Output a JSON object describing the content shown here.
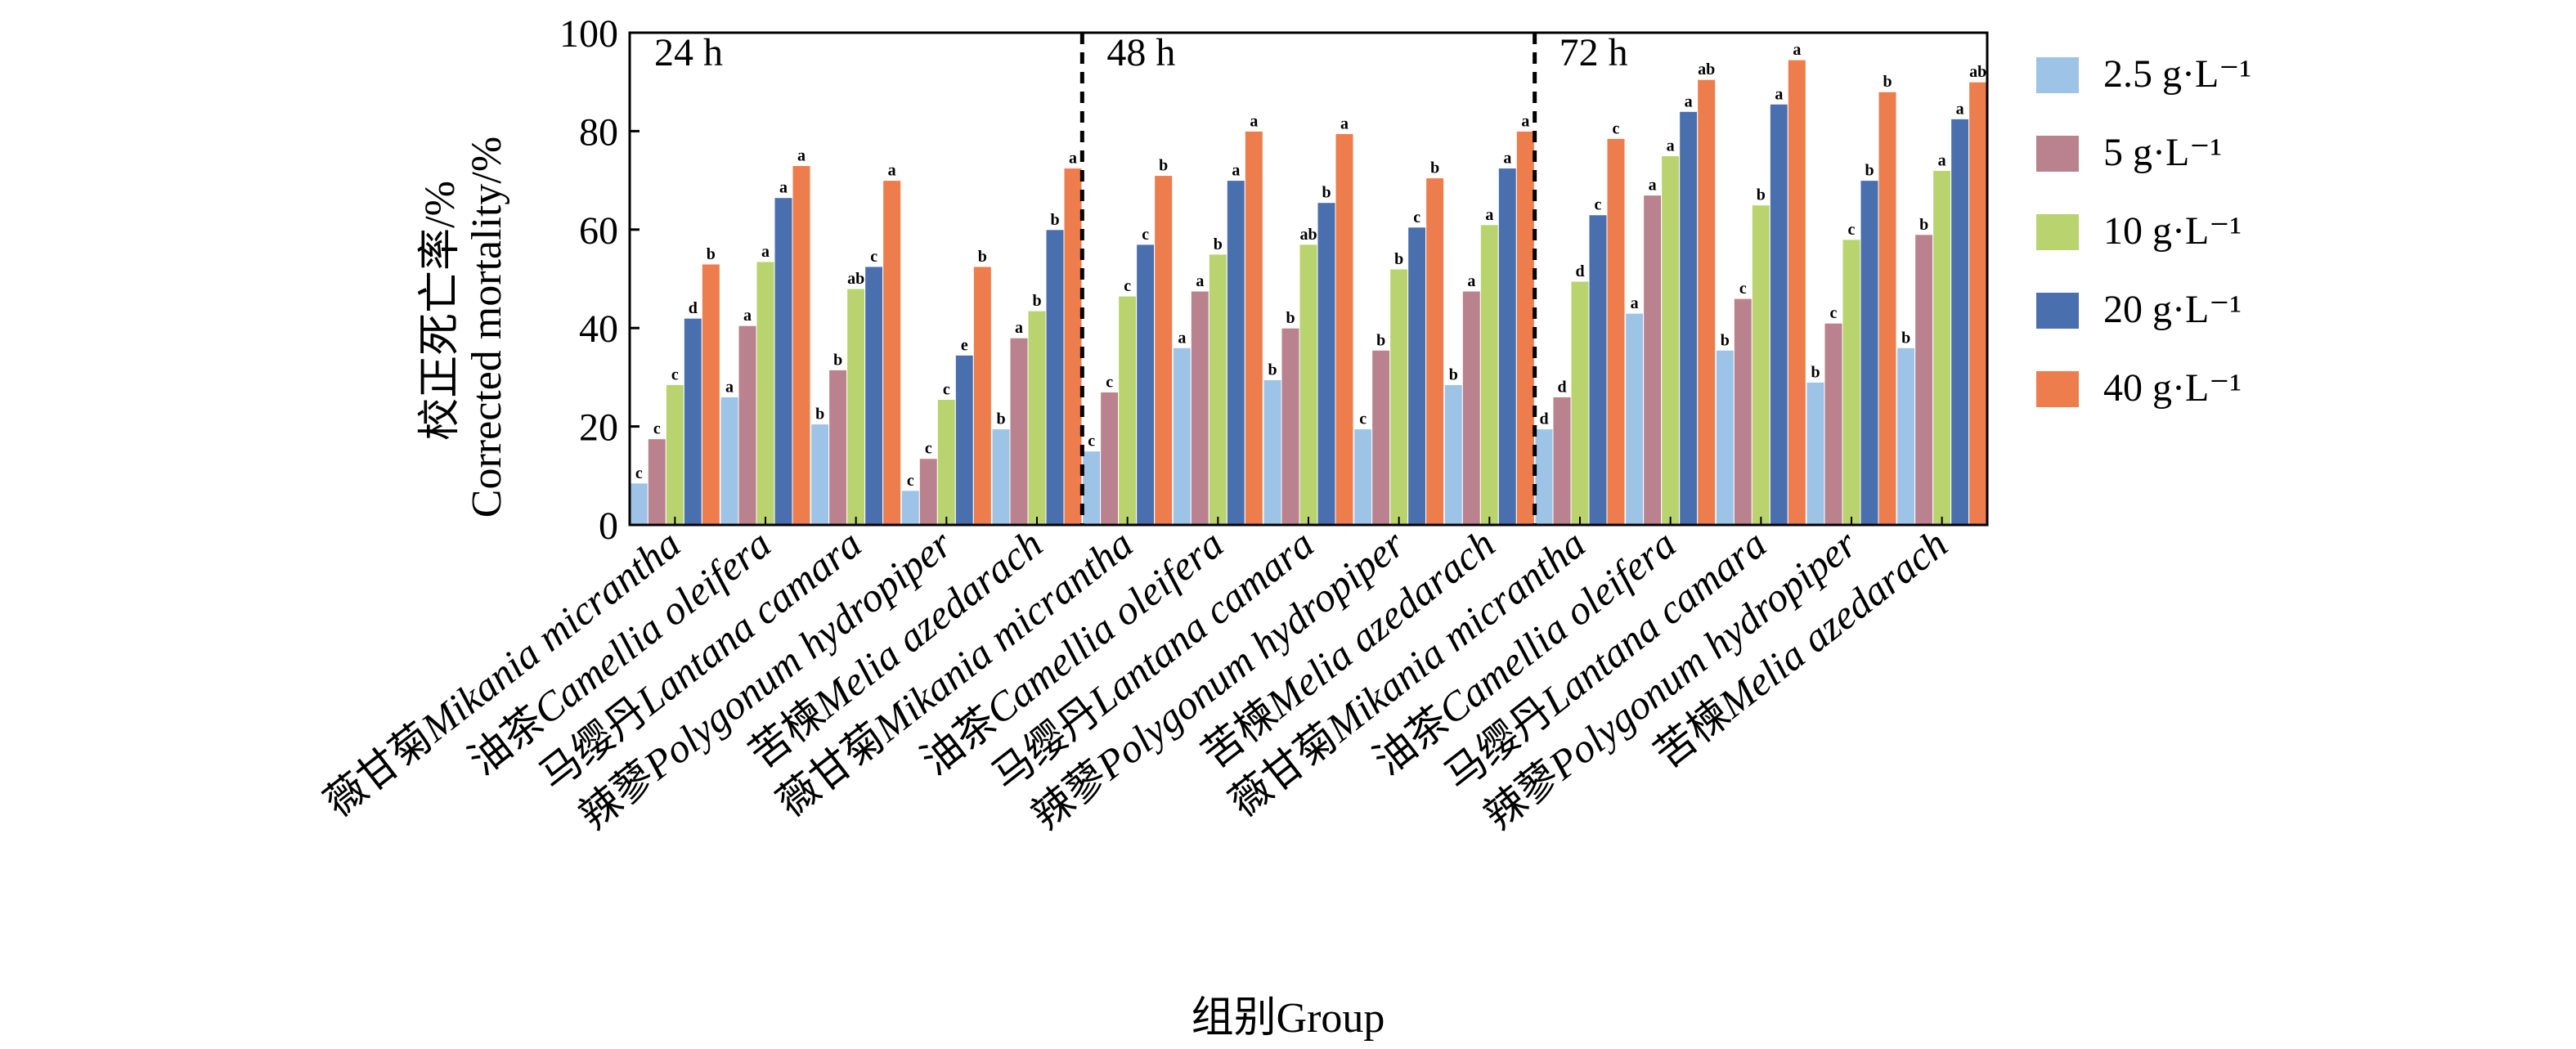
{
  "chart_data": {
    "type": "bar",
    "ylabel_cn": "校正死亡率/%",
    "ylabel_en": "Corrected mortality/%",
    "xlabel": "组别Group",
    "ylim": [
      0,
      100
    ],
    "yticks": [
      "0",
      "20",
      "40",
      "60",
      "80",
      "100"
    ],
    "panels": [
      "24 h",
      "48 h",
      "72 h"
    ],
    "categories": [
      {
        "cn": "薇甘菊",
        "en": "Mikania micrantha"
      },
      {
        "cn": "油茶",
        "en": "Camellia oleifera"
      },
      {
        "cn": "马缨丹",
        "en": "Lantana camara"
      },
      {
        "cn": "辣蓼",
        "en": "Polygonum hydropiper"
      },
      {
        "cn": "苦楝",
        "en": "Melia azedarach"
      },
      {
        "cn": "薇甘菊",
        "en": "Mikania micrantha"
      },
      {
        "cn": "油茶",
        "en": "Camellia oleifera"
      },
      {
        "cn": "马缨丹",
        "en": "Lantana camara"
      },
      {
        "cn": "辣蓼",
        "en": "Polygonum hydropiper"
      },
      {
        "cn": "苦楝",
        "en": "Melia azedarach"
      },
      {
        "cn": "薇甘菊",
        "en": "Mikania micrantha"
      },
      {
        "cn": "油茶",
        "en": "Camellia oleifera"
      },
      {
        "cn": "马缨丹",
        "en": "Lantana camara"
      },
      {
        "cn": "辣蓼",
        "en": "Polygonum hydropiper"
      },
      {
        "cn": "苦楝",
        "en": "Melia azedarach"
      }
    ],
    "series": [
      {
        "name": "2.5 g·L⁻¹",
        "color": "#9dc3e6",
        "values": [
          8.5,
          26,
          20.5,
          7,
          19.5,
          15,
          36,
          29.5,
          19.5,
          28.5,
          19.5,
          43,
          35.5,
          29,
          36
        ],
        "labels": [
          "c",
          "a",
          "b",
          "c",
          "b",
          "c",
          "a",
          "b",
          "c",
          "b",
          "d",
          "a",
          "b",
          "b",
          "b"
        ]
      },
      {
        "name": "5 g·L⁻¹",
        "color": "#b9828e",
        "values": [
          17.5,
          40.5,
          31.5,
          13.5,
          38,
          27,
          47.5,
          40,
          35.5,
          47.5,
          26,
          67,
          46,
          41,
          59
        ],
        "labels": [
          "c",
          "a",
          "b",
          "c",
          "a",
          "c",
          "a",
          "b",
          "b",
          "a",
          "d",
          "a",
          "c",
          "c",
          "b"
        ]
      },
      {
        "name": "10 g·L⁻¹",
        "color": "#b9d36e",
        "values": [
          28.5,
          53.5,
          48,
          25.5,
          43.5,
          46.5,
          55,
          57,
          52,
          61,
          49.5,
          75,
          65,
          58,
          72
        ],
        "labels": [
          "c",
          "a",
          "ab",
          "c",
          "b",
          "c",
          "b",
          "ab",
          "b",
          "a",
          "d",
          "a",
          "b",
          "c",
          "a"
        ]
      },
      {
        "name": "20 g·L⁻¹",
        "color": "#4a6faf",
        "values": [
          42,
          66.5,
          52.5,
          34.5,
          60,
          57,
          70,
          65.5,
          60.5,
          72.5,
          63,
          84,
          85.5,
          70,
          82.5
        ],
        "labels": [
          "d",
          "a",
          "c",
          "e",
          "b",
          "c",
          "a",
          "b",
          "c",
          "a",
          "c",
          "a",
          "a",
          "b",
          "a"
        ]
      },
      {
        "name": "40 g·L⁻¹",
        "color": "#ed7d4c",
        "values": [
          53,
          73,
          70,
          52.5,
          72.5,
          71,
          80,
          79.5,
          70.5,
          80,
          78.5,
          90.5,
          94.5,
          88,
          90
        ],
        "labels": [
          "b",
          "a",
          "a",
          "b",
          "a",
          "b",
          "a",
          "a",
          "b",
          "a",
          "c",
          "ab",
          "a",
          "b",
          "ab"
        ]
      }
    ]
  }
}
